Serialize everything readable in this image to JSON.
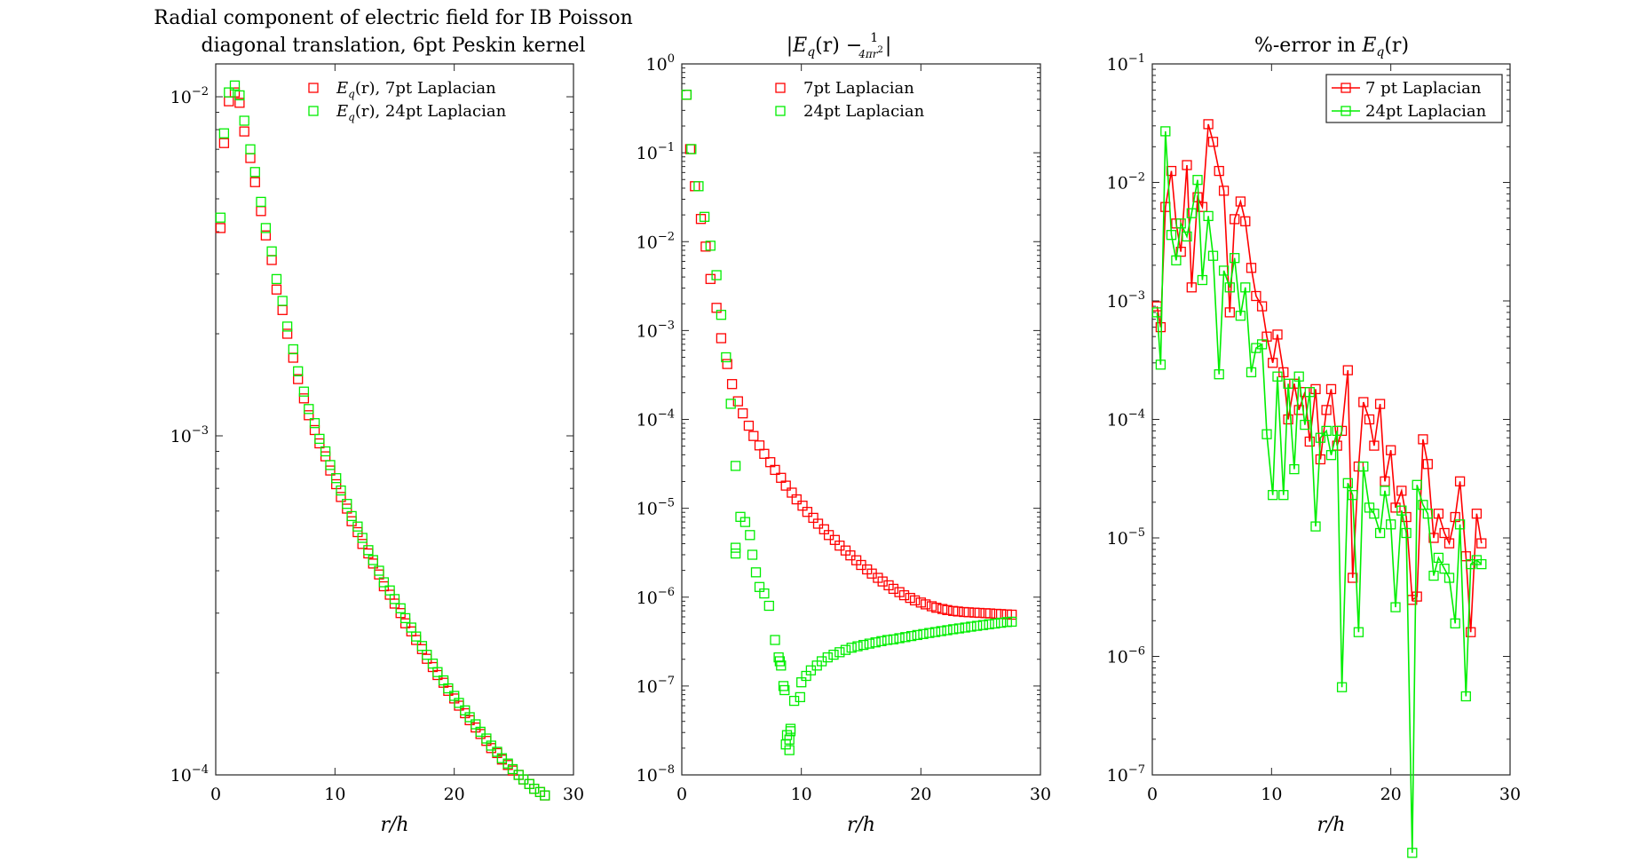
{
  "chart_data": [
    {
      "type": "scatter",
      "title_lines": [
        "Radial component of electric field for IB Poisson",
        "diagonal translation, 6pt Peskin kernel"
      ],
      "xlabel": "r/h",
      "ylabel": "",
      "xlim": [
        0,
        30
      ],
      "ylim": [
        0.0001,
        0.0125
      ],
      "yscale": "log",
      "xticks": [
        0,
        10,
        20,
        30
      ],
      "yticks": [
        {
          "v": 0.01,
          "m": "10",
          "e": "−2"
        },
        {
          "v": 0.001,
          "m": "10",
          "e": "−3"
        },
        {
          "v": 0.0001,
          "m": "10",
          "e": "−4"
        }
      ],
      "legend_position": "top-right",
      "legend_box": false,
      "series": [
        {
          "name": "E_q(r), 7pt Laplacian",
          "label_main": "E",
          "label_sub": "q",
          "label_rest": "(r), 7pt Laplacian",
          "color": "#ff0000",
          "marker": "square",
          "line": false,
          "x": [
            0.4,
            0.7,
            1.1,
            1.6,
            2.0,
            2.4,
            2.9,
            3.3,
            3.8,
            4.2,
            4.7,
            5.1,
            5.6,
            6.0,
            6.5,
            6.9,
            7.4,
            7.8,
            8.3,
            8.7,
            9.2,
            9.6,
            10.1,
            10.5,
            11.0,
            11.4,
            11.9,
            12.3,
            12.8,
            13.2,
            13.7,
            14.1,
            14.6,
            15.0,
            15.5,
            15.9,
            16.4,
            16.8,
            17.3,
            17.7,
            18.2,
            18.6,
            19.1,
            19.5,
            20.0,
            20.4,
            20.9,
            21.3,
            21.8,
            22.2,
            22.7,
            23.1,
            23.6,
            24.0,
            24.5,
            24.9,
            25.4,
            25.8,
            26.3,
            26.7,
            27.2,
            27.6
          ],
          "y": [
            0.0041,
            0.0073,
            0.0097,
            0.0103,
            0.0096,
            0.0079,
            0.0066,
            0.0056,
            0.0046,
            0.0039,
            0.0033,
            0.0027,
            0.00235,
            0.002,
            0.0017,
            0.00147,
            0.00129,
            0.00115,
            0.00104,
            0.00095,
            0.00087,
            0.00079,
            0.00072,
            0.00066,
            0.00061,
            0.00056,
            0.00052,
            0.00048,
            0.00045,
            0.00042,
            0.00039,
            0.00036,
            0.00034,
            0.00032,
            0.0003,
            0.00028,
            0.000265,
            0.00025,
            0.000235,
            0.00022,
            0.000208,
            0.000197,
            0.000187,
            0.000177,
            0.000168,
            0.00016,
            0.000152,
            0.000145,
            0.000138,
            0.000132,
            0.000126,
            0.00012,
            0.000116,
            0.000111,
            0.000107,
            0.000103,
            0.0001,
            9.7e-05,
            9.4e-05,
            9.1e-05,
            8.9e-05,
            8.7e-05
          ]
        },
        {
          "name": "E_q(r), 24pt Laplacian",
          "label_main": "E",
          "label_sub": "q",
          "label_rest": "(r), 24pt Laplacian",
          "color": "#00ee00",
          "marker": "square",
          "line": false,
          "x": [
            0.4,
            0.7,
            1.1,
            1.6,
            2.0,
            2.4,
            2.9,
            3.3,
            3.8,
            4.2,
            4.7,
            5.1,
            5.6,
            6.0,
            6.5,
            6.9,
            7.4,
            7.8,
            8.3,
            8.7,
            9.2,
            9.6,
            10.1,
            10.5,
            11.0,
            11.4,
            11.9,
            12.3,
            12.8,
            13.2,
            13.7,
            14.1,
            14.6,
            15.0,
            15.5,
            15.9,
            16.4,
            16.8,
            17.3,
            17.7,
            18.2,
            18.6,
            19.1,
            19.5,
            20.0,
            20.4,
            20.9,
            21.3,
            21.8,
            22.2,
            22.7,
            23.1,
            23.6,
            24.0,
            24.5,
            24.9,
            25.4,
            25.8,
            26.3,
            26.7,
            27.2,
            27.6
          ],
          "y": [
            0.0044,
            0.0078,
            0.0103,
            0.0108,
            0.0101,
            0.0085,
            0.007,
            0.006,
            0.0049,
            0.0041,
            0.0035,
            0.0029,
            0.0025,
            0.0021,
            0.0018,
            0.00155,
            0.00135,
            0.0012,
            0.00109,
            0.00098,
            0.0009,
            0.00082,
            0.00075,
            0.00069,
            0.00063,
            0.00058,
            0.00054,
            0.0005,
            0.00046,
            0.00043,
            0.0004,
            0.00037,
            0.00035,
            0.00033,
            0.00031,
            0.00029,
            0.000272,
            0.000256,
            0.00024,
            0.000226,
            0.000213,
            0.000201,
            0.00019,
            0.00018,
            0.000171,
            0.000163,
            0.000155,
            0.000148,
            0.000141,
            0.000134,
            0.000128,
            0.000122,
            0.000117,
            0.000112,
            0.000108,
            0.000104,
            0.0001,
            9.7e-05,
            9.4e-05,
            9.1e-05,
            8.9e-05,
            8.7e-05
          ]
        }
      ]
    },
    {
      "type": "scatter",
      "title_parts": {
        "bar": "|",
        "main": "E",
        "sub": "q",
        "rest": "(r) − ",
        "frac_num": "1",
        "frac_den": "4πr",
        "frac_den_sup": "2",
        "bar_end": "|"
      },
      "xlabel": "r/h",
      "ylabel": "",
      "xlim": [
        0,
        30
      ],
      "ylim": [
        1e-08,
        1
      ],
      "yscale": "log",
      "xticks": [
        0,
        10,
        20,
        30
      ],
      "yticks": [
        {
          "v": 1,
          "m": "10",
          "e": "0"
        },
        {
          "v": 0.1,
          "m": "10",
          "e": "−1"
        },
        {
          "v": 0.01,
          "m": "10",
          "e": "−2"
        },
        {
          "v": 0.001,
          "m": "10",
          "e": "−3"
        },
        {
          "v": 0.0001,
          "m": "10",
          "e": "−4"
        },
        {
          "v": 1e-05,
          "m": "10",
          "e": "−5"
        },
        {
          "v": 1e-06,
          "m": "10",
          "e": "−6"
        },
        {
          "v": 1e-07,
          "m": "10",
          "e": "−7"
        },
        {
          "v": 1e-08,
          "m": "10",
          "e": "−8"
        }
      ],
      "legend_position": "top-right",
      "legend_box": false,
      "series": [
        {
          "name": "7pt Laplacian",
          "label_main": "7pt Laplacian",
          "color": "#ff0000",
          "marker": "square",
          "line": false,
          "x": [
            0.4,
            0.7,
            1.1,
            1.6,
            2.0,
            2.4,
            2.9,
            3.3,
            3.8,
            4.2,
            4.7,
            5.1,
            5.6,
            6.0,
            6.5,
            6.9,
            7.4,
            7.8,
            8.3,
            8.7,
            9.2,
            9.6,
            10.1,
            10.5,
            11.0,
            11.4,
            11.9,
            12.3,
            12.8,
            13.2,
            13.7,
            14.1,
            14.6,
            15.0,
            15.5,
            15.9,
            16.4,
            16.8,
            17.3,
            17.7,
            18.2,
            18.6,
            19.1,
            19.5,
            20.0,
            20.4,
            20.9,
            21.3,
            21.8,
            22.2,
            22.7,
            23.1,
            23.6,
            24.0,
            24.5,
            24.9,
            25.4,
            25.8,
            26.3,
            26.7,
            27.2,
            27.6
          ],
          "y": [
            0.45,
            0.11,
            0.042,
            0.018,
            0.0088,
            0.0038,
            0.0018,
            0.00082,
            0.00042,
            0.00025,
            0.00016,
            0.000117,
            8.5e-05,
            6.5e-05,
            5.1e-05,
            4.1e-05,
            3.3e-05,
            2.7e-05,
            2.2e-05,
            1.8e-05,
            1.5e-05,
            1.26e-05,
            1.07e-05,
            9.1e-06,
            7.8e-06,
            6.7e-06,
            5.8e-06,
            5e-06,
            4.4e-06,
            3.8e-06,
            3.35e-06,
            2.95e-06,
            2.6e-06,
            2.3e-06,
            2.05e-06,
            1.84e-06,
            1.65e-06,
            1.5e-06,
            1.36e-06,
            1.24e-06,
            1.14e-06,
            1.05e-06,
            9.8e-07,
            9.2e-07,
            8.7e-07,
            8.3e-07,
            7.9e-07,
            7.6e-07,
            7.35e-07,
            7.15e-07,
            7e-07,
            6.9e-07,
            6.8e-07,
            6.75e-07,
            6.7e-07,
            6.65e-07,
            6.6e-07,
            6.55e-07,
            6.5e-07,
            6.45e-07,
            6.4e-07,
            6.35e-07
          ]
        },
        {
          "name": "24pt Laplacian",
          "label_main": "24pt Laplacian",
          "color": "#00ee00",
          "marker": "square",
          "line": false,
          "x": [
            0.4,
            0.8,
            1.4,
            1.9,
            2.4,
            2.9,
            3.3,
            3.7,
            4.1,
            4.5,
            4.5,
            4.5,
            4.9,
            5.3,
            5.7,
            5.9,
            6.2,
            6.5,
            6.9,
            7.3,
            7.8,
            8.1,
            8.2,
            8.3,
            8.5,
            8.6,
            8.7,
            8.8,
            9.0,
            9.0,
            9.1,
            9.1,
            9.4,
            9.9,
            10.0,
            10.4,
            10.8,
            11.3,
            11.7,
            12.2,
            12.7,
            13.2,
            13.7,
            14.2,
            14.7,
            15.2,
            15.7,
            16.2,
            16.7,
            17.2,
            17.7,
            18.2,
            18.7,
            19.2,
            19.7,
            20.2,
            20.7,
            21.2,
            21.7,
            22.2,
            22.7,
            23.2,
            23.7,
            24.2,
            24.7,
            25.2,
            25.7,
            26.2,
            26.7,
            27.2,
            27.6
          ],
          "y": [
            0.45,
            0.11,
            0.042,
            0.019,
            0.009,
            0.0042,
            0.0015,
            0.0005,
            0.00015,
            3e-05,
            3.6e-06,
            3.1e-06,
            8e-06,
            7e-06,
            5e-06,
            3e-06,
            1.9e-06,
            1.3e-06,
            1.1e-06,
            8e-07,
            3.3e-07,
            2.1e-07,
            1.9e-07,
            1.7e-07,
            1e-07,
            9e-08,
            2.2e-08,
            2.8e-08,
            1.9e-08,
            2.5e-08,
            3.1e-08,
            3.3e-08,
            6.8e-08,
            7.5e-08,
            1.1e-07,
            1.3e-07,
            1.5e-07,
            1.7e-07,
            1.9e-07,
            2.1e-07,
            2.25e-07,
            2.4e-07,
            2.55e-07,
            2.7e-07,
            2.8e-07,
            2.9e-07,
            3e-07,
            3.1e-07,
            3.2e-07,
            3.3e-07,
            3.35e-07,
            3.45e-07,
            3.55e-07,
            3.65e-07,
            3.75e-07,
            3.85e-07,
            3.95e-07,
            4.05e-07,
            4.15e-07,
            4.25e-07,
            4.35e-07,
            4.45e-07,
            4.55e-07,
            4.65e-07,
            4.75e-07,
            4.85e-07,
            4.95e-07,
            5.05e-07,
            5.15e-07,
            5.25e-07,
            5.3e-07
          ]
        }
      ]
    },
    {
      "type": "line",
      "title_parts": {
        "pre": "%-error in ",
        "main": "E",
        "sub": "q",
        "rest": "(r)"
      },
      "xlabel": "r/h",
      "ylabel": "",
      "xlim": [
        0,
        30
      ],
      "ylim": [
        1e-07,
        0.1
      ],
      "yscale": "log",
      "xticks": [
        0,
        10,
        20,
        30
      ],
      "yticks": [
        {
          "v": 0.1,
          "m": "10",
          "e": "−1"
        },
        {
          "v": 0.01,
          "m": "10",
          "e": "−2"
        },
        {
          "v": 0.001,
          "m": "10",
          "e": "−3"
        },
        {
          "v": 0.0001,
          "m": "10",
          "e": "−4"
        },
        {
          "v": 1e-05,
          "m": "10",
          "e": "−5"
        },
        {
          "v": 1e-06,
          "m": "10",
          "e": "−6"
        },
        {
          "v": 1e-07,
          "m": "10",
          "e": "−7"
        }
      ],
      "legend_position": "top-right",
      "legend_box": true,
      "series": [
        {
          "name": "7 pt Laplacian",
          "label_main": "7 pt Laplacian",
          "color": "#ff0000",
          "marker": "square",
          "line": true,
          "x": [
            0.4,
            0.7,
            1.1,
            1.6,
            2.0,
            2.4,
            2.9,
            3.3,
            3.8,
            4.2,
            4.7,
            5.1,
            5.6,
            6.0,
            6.5,
            6.9,
            7.4,
            7.8,
            8.3,
            8.7,
            9.2,
            9.6,
            10.1,
            10.5,
            11.0,
            11.4,
            11.9,
            12.3,
            12.8,
            13.2,
            13.7,
            14.1,
            14.6,
            15.0,
            15.5,
            15.9,
            16.4,
            16.8,
            17.3,
            17.7,
            18.2,
            18.6,
            19.1,
            19.5,
            20.0,
            20.4,
            20.9,
            21.3,
            21.8,
            22.2,
            22.7,
            23.1,
            23.6,
            24.0,
            24.5,
            24.9,
            25.4,
            25.8,
            26.3,
            26.7,
            27.2,
            27.6
          ],
          "y": [
            0.0009,
            0.0006,
            0.0062,
            0.0125,
            0.0045,
            0.0026,
            0.014,
            0.0013,
            0.0075,
            0.0062,
            0.031,
            0.022,
            0.0125,
            0.0085,
            0.0008,
            0.0049,
            0.0069,
            0.0047,
            0.0019,
            0.0011,
            0.0009,
            0.0005,
            0.0003,
            0.00052,
            0.00025,
            0.0001,
            0.0002,
            0.00012,
            0.00017,
            6.5e-05,
            0.00018,
            4.6e-05,
            0.00012,
            0.00018,
            6e-05,
            8e-05,
            0.00026,
            4.6e-06,
            4e-05,
            0.00014,
            0.0001,
            6e-05,
            0.000135,
            3e-05,
            5.5e-05,
            1.8e-05,
            2.5e-05,
            1.5e-05,
            3e-06,
            3.2e-06,
            6.8e-05,
            4.2e-05,
            1e-05,
            1.6e-05,
            1.1e-05,
            9e-06,
            1.5e-05,
            3e-05,
            7e-06,
            1.6e-06,
            1.6e-05,
            9e-06
          ]
        },
        {
          "name": "24pt Laplacian",
          "label_main": "24pt Laplacian",
          "color": "#00ee00",
          "marker": "square",
          "line": true,
          "x": [
            0.4,
            0.7,
            1.1,
            1.6,
            2.0,
            2.4,
            2.9,
            3.3,
            3.8,
            4.2,
            4.7,
            5.1,
            5.6,
            6.0,
            6.5,
            6.9,
            7.4,
            7.8,
            8.3,
            8.7,
            9.2,
            9.6,
            10.1,
            10.5,
            11.0,
            11.4,
            11.9,
            12.3,
            12.8,
            13.2,
            13.7,
            14.1,
            14.6,
            15.0,
            15.5,
            15.9,
            16.4,
            16.8,
            17.3,
            17.7,
            18.2,
            18.6,
            19.1,
            19.5,
            20.0,
            20.4,
            20.9,
            21.3,
            21.8,
            22.2,
            22.7,
            23.1,
            23.6,
            24.0,
            24.5,
            24.9,
            25.4,
            25.8,
            26.3,
            26.7,
            27.2,
            27.6
          ],
          "y": [
            0.0008,
            0.00029,
            0.027,
            0.0036,
            0.0022,
            0.0045,
            0.0035,
            0.0055,
            0.0105,
            0.0015,
            0.0052,
            0.0024,
            0.00024,
            0.0018,
            0.0013,
            0.0023,
            0.00075,
            0.0013,
            0.00025,
            0.0004,
            0.00043,
            7.5e-05,
            2.3e-05,
            0.00023,
            2.3e-05,
            0.0002,
            3.8e-05,
            0.00023,
            9e-05,
            0.00017,
            1.25e-05,
            7e-05,
            8e-05,
            5e-05,
            8e-05,
            5.5e-07,
            2.9e-05,
            2.3e-05,
            1.6e-06,
            4e-05,
            1.8e-05,
            1.6e-05,
            1.1e-05,
            2.5e-05,
            1.3e-05,
            2.6e-06,
            1.7e-05,
            1.1e-05,
            2.2e-08,
            2.8e-05,
            1.9e-05,
            1.6e-05,
            4.8e-06,
            6.8e-06,
            5.5e-06,
            4.6e-06,
            1.9e-06,
            1.3e-05,
            4.6e-07,
            6e-06,
            6.5e-06,
            6e-06
          ]
        }
      ]
    }
  ]
}
